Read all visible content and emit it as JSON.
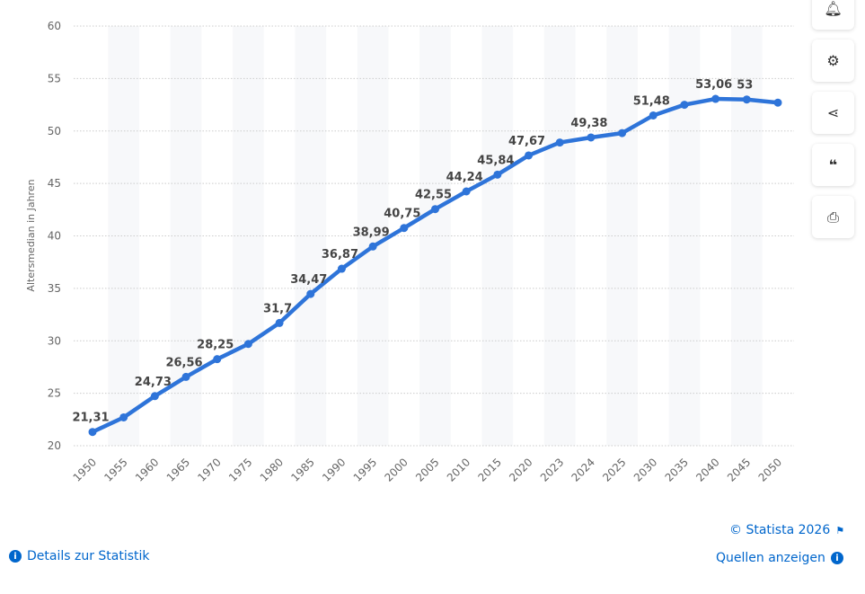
{
  "chart_data": {
    "type": "line",
    "ylabel": "Altersmedian in Jahren",
    "xlabel": "",
    "ylim": [
      20,
      60
    ],
    "yticks": [
      20,
      25,
      30,
      35,
      40,
      45,
      50,
      55,
      60
    ],
    "grid": true,
    "color": "#2e74d9",
    "categories": [
      "1950",
      "1955",
      "1960",
      "1965",
      "1970",
      "1975",
      "1980",
      "1985",
      "1990",
      "1995",
      "2000",
      "2005",
      "2010",
      "2015",
      "2020",
      "2023",
      "2024",
      "2025",
      "2030",
      "2035",
      "2040",
      "2045",
      "2050"
    ],
    "values": [
      21.31,
      22.7,
      24.73,
      26.56,
      28.25,
      29.7,
      31.7,
      34.47,
      36.87,
      38.99,
      40.75,
      42.55,
      44.24,
      45.84,
      47.67,
      48.9,
      49.38,
      49.8,
      51.48,
      52.5,
      53.06,
      53,
      52.7
    ],
    "data_labels": [
      "21,31",
      "",
      "24,73",
      "26,56",
      "28,25",
      "",
      "31,7",
      "34,47",
      "36,87",
      "38,99",
      "40,75",
      "42,55",
      "44,24",
      "45,84",
      "47,67",
      "",
      "49,38",
      "",
      "51,48",
      "",
      "53,06",
      "53",
      ""
    ]
  },
  "toolbar": {
    "icons": [
      "bell-icon",
      "gear-icon",
      "share-icon",
      "quote-icon",
      "print-icon"
    ]
  },
  "footer": {
    "copyright": "© Statista 2026",
    "details": "Details zur Statistik",
    "sources": "Quellen anzeigen"
  }
}
